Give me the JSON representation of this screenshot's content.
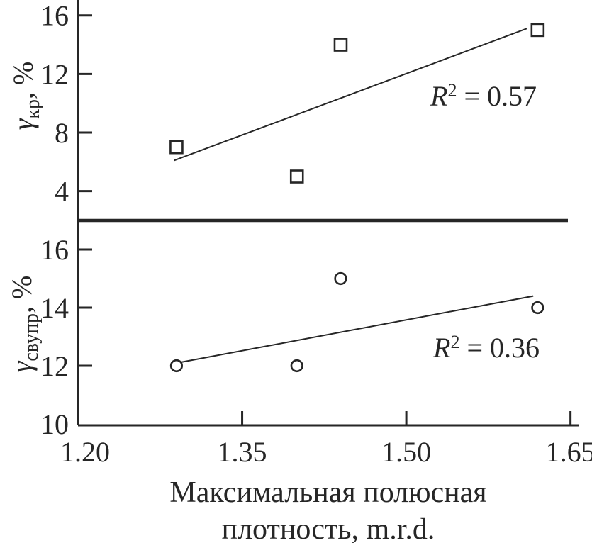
{
  "figure": {
    "background": "#ffffff",
    "ink_color": "#262626",
    "x_axis": {
      "tick_labels": [
        "1.20",
        "1.35",
        "1.50",
        "1.65"
      ],
      "tick_values": [
        1.2,
        1.35,
        1.5,
        1.65
      ],
      "range": [
        1.2,
        1.658
      ],
      "title_line1": "Максимальная полюсная",
      "title_line2": "плотность, m.r.d.",
      "title_full": "Максимальная полюсная плотность, m.r.d."
    }
  },
  "chart_data": [
    {
      "type": "scatter",
      "panel": "top",
      "marker": "open-square",
      "ylabel": {
        "symbol": "γ",
        "subscript": "кр",
        "suffix": ", %",
        "full": "γкр, %"
      },
      "ytick_labels": [
        "16",
        "12",
        "8",
        "4"
      ],
      "ytick_values": [
        16,
        12,
        8,
        4
      ],
      "ylim": [
        2.0,
        17.05
      ],
      "grid": false,
      "legend": "none",
      "points": [
        {
          "x": 1.29,
          "y": 7
        },
        {
          "x": 1.4,
          "y": 5
        },
        {
          "x": 1.44,
          "y": 14
        },
        {
          "x": 1.62,
          "y": 15
        }
      ],
      "trendline": {
        "x1": 1.288,
        "y1": 6.1,
        "x2": 1.61,
        "y2": 15.1
      },
      "annotation": {
        "variable": "R",
        "sup": "2",
        "rest": " = 0.57",
        "r_squared": 0.57
      }
    },
    {
      "type": "scatter",
      "panel": "bottom",
      "marker": "open-circle",
      "ylabel": {
        "symbol": "γ",
        "subscript": "свупр",
        "suffix": ", %",
        "full": "γсвупр, %"
      },
      "ytick_labels": [
        "16",
        "14",
        "12",
        "10"
      ],
      "ytick_values": [
        16,
        14,
        12,
        10
      ],
      "ylim": [
        9.95,
        17.0
      ],
      "grid": false,
      "legend": "none",
      "points": [
        {
          "x": 1.29,
          "y": 12
        },
        {
          "x": 1.4,
          "y": 12
        },
        {
          "x": 1.44,
          "y": 15
        },
        {
          "x": 1.62,
          "y": 14
        }
      ],
      "trendline": {
        "x1": 1.291,
        "y1": 12.1,
        "x2": 1.616,
        "y2": 14.4
      },
      "annotation": {
        "variable": "R",
        "sup": "2",
        "rest": " = 0.36",
        "r_squared": 0.36
      }
    }
  ]
}
